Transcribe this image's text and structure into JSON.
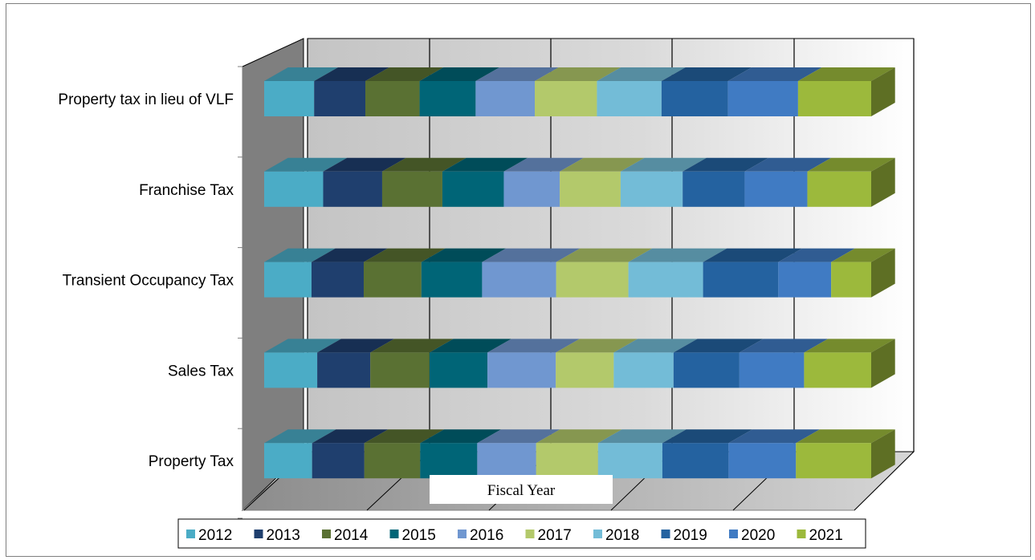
{
  "chart_data": {
    "type": "bar",
    "orientation": "horizontal",
    "stacked": "100%",
    "style": "3d",
    "title": "",
    "xlabel": "Fiscal Year",
    "ylabel": "",
    "xlim": [
      0,
      1
    ],
    "grid": true,
    "legend_position": "bottom",
    "categories": [
      "Property Tax",
      "Sales Tax",
      "Transient Occupancy Tax",
      "Franchise Tax",
      "Property tax in lieu of VLF"
    ],
    "series": [
      {
        "name": "2012",
        "color": "#4bacc6",
        "values": [
          0.079,
          0.087,
          0.078,
          0.097,
          0.082
        ]
      },
      {
        "name": "2013",
        "color": "#1f3f6e",
        "values": [
          0.086,
          0.087,
          0.086,
          0.097,
          0.084
        ]
      },
      {
        "name": "2014",
        "color": "#5a7133",
        "values": [
          0.092,
          0.097,
          0.095,
          0.099,
          0.089
        ]
      },
      {
        "name": "2015",
        "color": "#006577",
        "values": [
          0.094,
          0.095,
          0.1,
          0.101,
          0.092
        ]
      },
      {
        "name": "2016",
        "color": "#7097d0",
        "values": [
          0.097,
          0.112,
          0.122,
          0.092,
          0.097
        ]
      },
      {
        "name": "2017",
        "color": "#b3c96b",
        "values": [
          0.102,
          0.095,
          0.119,
          0.1,
          0.102
        ]
      },
      {
        "name": "2018",
        "color": "#73bcd7",
        "values": [
          0.106,
          0.098,
          0.123,
          0.102,
          0.106
        ]
      },
      {
        "name": "2019",
        "color": "#2462a0",
        "values": [
          0.109,
          0.108,
          0.124,
          0.102,
          0.109
        ]
      },
      {
        "name": "2020",
        "color": "#407bc3",
        "values": [
          0.111,
          0.106,
          0.087,
          0.103,
          0.115
        ]
      },
      {
        "name": "2021",
        "color": "#9cb93c",
        "values": [
          0.124,
          0.11,
          0.066,
          0.105,
          0.12
        ]
      }
    ]
  }
}
